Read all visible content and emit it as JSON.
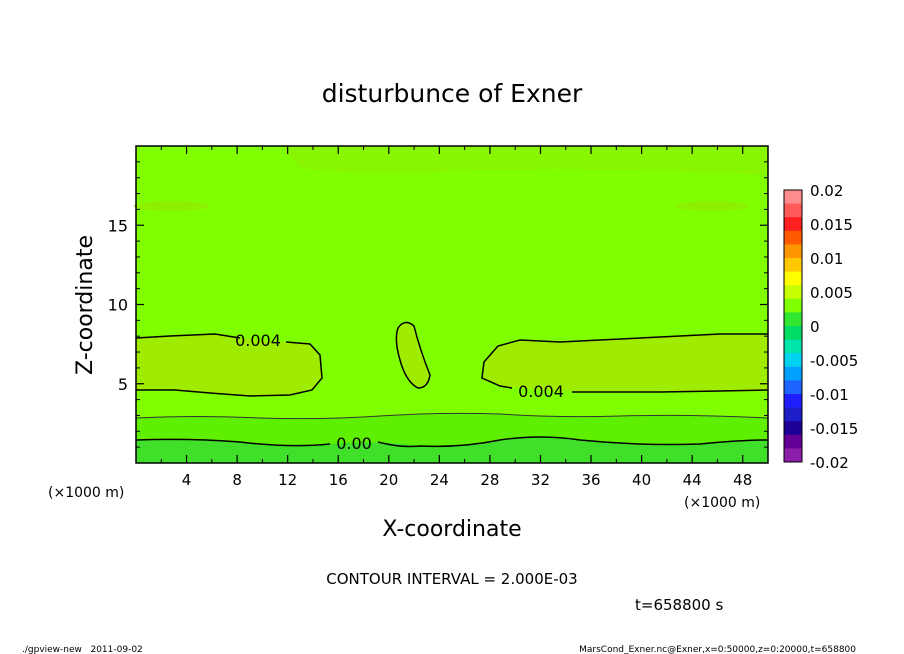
{
  "chart_data": {
    "type": "heatmap",
    "title": "disturbunce of Exner",
    "xlabel": "X-coordinate",
    "ylabel": "Z-coordinate",
    "x_unit": "(×1000 m)",
    "y_unit": "(×1000 m)",
    "xlim": [
      0,
      50
    ],
    "ylim": [
      0,
      20
    ],
    "x_ticks": [
      4,
      8,
      12,
      16,
      20,
      24,
      28,
      32,
      36,
      40,
      44,
      48
    ],
    "y_ticks": [
      5,
      10,
      15
    ],
    "x_tick_labels": [
      "4",
      "8",
      "12",
      "16",
      "20",
      "24",
      "28",
      "32",
      "36",
      "40",
      "44",
      "48"
    ],
    "y_tick_labels": [
      "5",
      "10",
      "15"
    ],
    "colorbar": {
      "range": [
        -0.02,
        0.02
      ],
      "labels": [
        "0.02",
        "0.015",
        "0.01",
        "0.005",
        "0",
        "-0.005",
        "-0.01",
        "-0.015",
        "-0.02"
      ],
      "colors": [
        "#ff8c8c",
        "#ff5a5a",
        "#ff2020",
        "#ff5a00",
        "#ff9600",
        "#ffc800",
        "#ffff00",
        "#c8ff00",
        "#7fff00",
        "#32e632",
        "#00dc64",
        "#00e6aa",
        "#00d2f0",
        "#00a0ff",
        "#1e64ff",
        "#1e1eff",
        "#1e1ec8",
        "#1e0096",
        "#640096",
        "#8c1eaa"
      ]
    },
    "contour_interval": "CONTOUR INTERVAL = 2.000E-03",
    "contour_labels": [
      "0.004",
      "0.004",
      "0.00"
    ],
    "time_label": "t=658800 s"
  },
  "footer": {
    "left": "./gpview-new   2011-09-02",
    "right": "MarsCond_Exner.nc@Exner,x=0:50000,z=0:20000,t=658800"
  }
}
